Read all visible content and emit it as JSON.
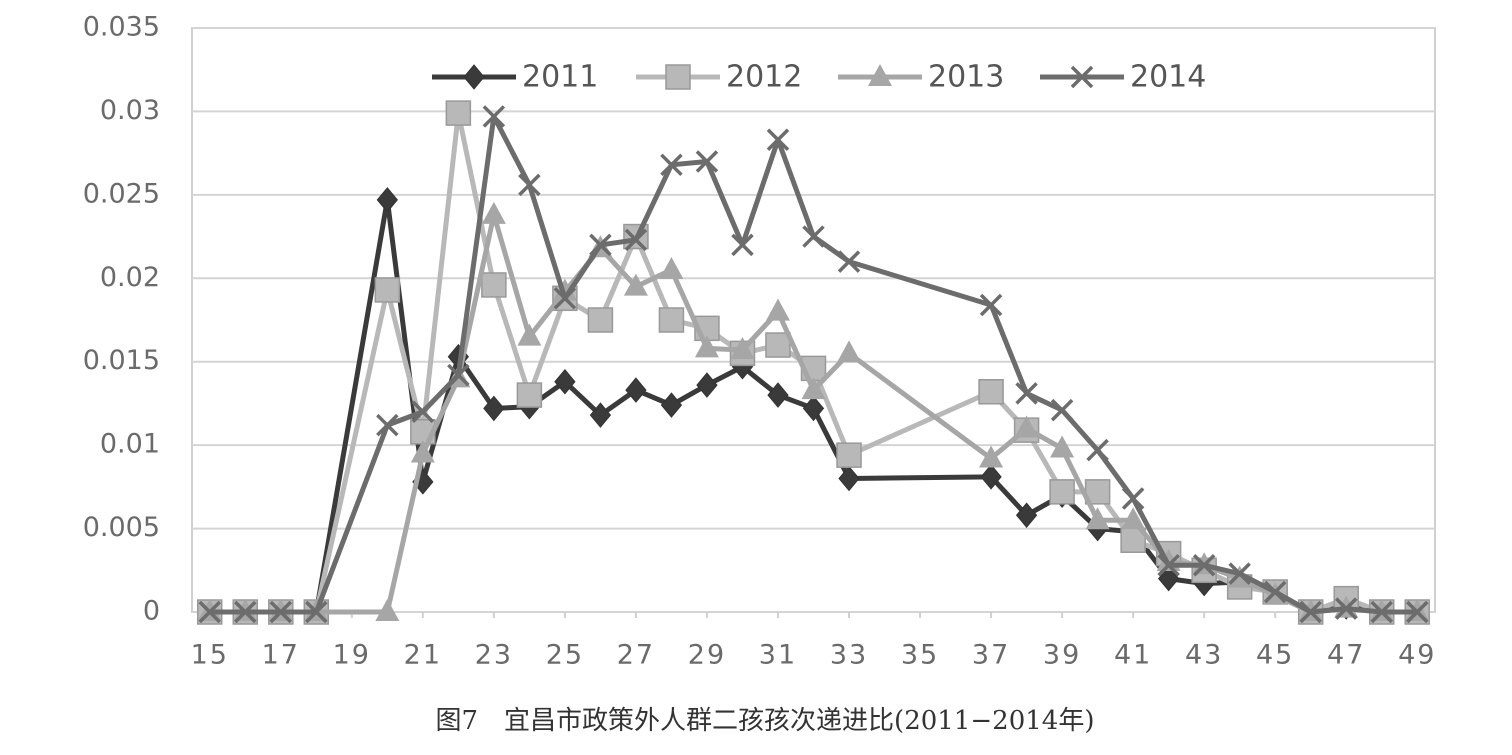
{
  "chart_data": {
    "type": "line",
    "caption": "图7　宜昌市政策外人群二孩孩次递进比(2011−2014年)",
    "x": [
      15,
      16,
      17,
      18,
      20,
      21,
      22,
      23,
      24,
      25,
      26,
      27,
      28,
      29,
      30,
      31,
      32,
      33,
      37,
      38,
      39,
      40,
      41,
      42,
      43,
      44,
      45,
      46,
      47,
      48,
      49
    ],
    "xlim": [
      14.5,
      49.5
    ],
    "xticks": [
      15,
      17,
      19,
      21,
      23,
      25,
      27,
      29,
      31,
      33,
      35,
      37,
      39,
      41,
      43,
      45,
      47,
      49
    ],
    "ylim": [
      0,
      0.035
    ],
    "yticks": [
      0,
      0.005,
      0.01,
      0.015,
      0.02,
      0.025,
      0.03,
      0.035
    ],
    "grid": true,
    "legend": "top",
    "series": [
      {
        "name": "2011",
        "color": "#3a3a3a",
        "marker": "diamond",
        "values": [
          0,
          0,
          0,
          0,
          0.0247,
          0.0078,
          0.0153,
          0.0122,
          0.0123,
          0.0138,
          0.0118,
          0.0133,
          0.0124,
          0.0136,
          0.0147,
          0.013,
          0.0122,
          0.008,
          0.0081,
          0.0058,
          0.007,
          0.005,
          0.0048,
          0.002,
          0.0017,
          0.0018,
          0.0012,
          0,
          0.0003,
          0,
          0
        ]
      },
      {
        "name": "2012",
        "color": "#b8b8b8",
        "marker": "square",
        "values": [
          0,
          0,
          0,
          0,
          0.0193,
          0.0108,
          0.0299,
          0.0196,
          0.013,
          0.0188,
          0.0175,
          0.0225,
          0.0175,
          0.017,
          0.0155,
          0.016,
          0.0146,
          0.0094,
          0.0132,
          0.0109,
          0.0072,
          0.0072,
          0.0043,
          0.0035,
          0.0025,
          0.0015,
          0.0012,
          0,
          0.0008,
          0,
          0
        ]
      },
      {
        "name": "2013",
        "color": "#a6a6a6",
        "marker": "triangle",
        "values": [
          0,
          0,
          0,
          0,
          0,
          0.0095,
          0.014,
          0.0238,
          0.0165,
          0.0192,
          0.0218,
          0.0195,
          0.0205,
          0.0158,
          0.0157,
          0.018,
          0.0133,
          0.0155,
          0.0092,
          0.011,
          0.0098,
          0.0055,
          0.0055,
          0.003,
          0.0028,
          0.002,
          0.001,
          0,
          0.0002,
          0,
          0
        ]
      },
      {
        "name": "2014",
        "color": "#6c6c6c",
        "marker": "x",
        "values": [
          0,
          0,
          0,
          0,
          0.0112,
          0.012,
          0.0142,
          0.0297,
          0.0256,
          0.0188,
          0.022,
          0.0223,
          0.0268,
          0.027,
          0.022,
          0.0283,
          0.0225,
          0.021,
          0.0184,
          0.0131,
          0.0121,
          0.0097,
          0.0068,
          0.0028,
          0.0028,
          0.0023,
          0.0012,
          0,
          0.0002,
          0,
          0
        ]
      }
    ]
  }
}
